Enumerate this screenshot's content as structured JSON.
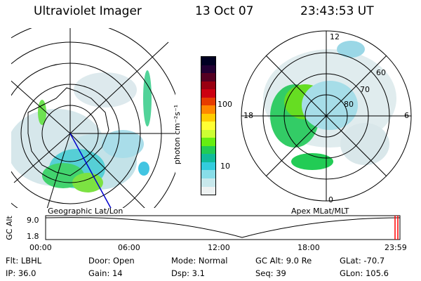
{
  "header": {
    "title": "Ultraviolet Imager",
    "date": "13 Oct 07",
    "time": "23:43:53 UT"
  },
  "colorbar": {
    "label": "photon cm⁻²s⁻¹",
    "ticks": [
      "100",
      "10"
    ],
    "colors": [
      "#000022",
      "#220033",
      "#550022",
      "#990011",
      "#cc0011",
      "#e63c00",
      "#ff8800",
      "#ffcc00",
      "#ffff33",
      "#ccff33",
      "#66ee11",
      "#22cc55",
      "#11bb99",
      "#33ccdd",
      "#88dde8",
      "#c8e8ec",
      "#eef2f2"
    ]
  },
  "panels": {
    "left_label": "Geographic Lat/Lon",
    "right_label": "Apex MLat/MLT",
    "polar": {
      "top": "12",
      "left": "18",
      "right": "6",
      "bottom": "0",
      "lat_labels": [
        "60",
        "70",
        "80"
      ]
    }
  },
  "altplot": {
    "y_title": "GC Alt",
    "y_ticks": [
      "9.0",
      "1.8"
    ],
    "x_ticks": [
      "00:00",
      "06:00",
      "12:00",
      "18:00",
      "23:59"
    ],
    "marker_color": "#ff0000"
  },
  "info": {
    "row1": [
      {
        "label": "Flt: LBHL"
      },
      {
        "label": "Door: Open"
      },
      {
        "label": "Mode: Normal"
      },
      {
        "label": "GC Alt: 9.0 Re"
      },
      {
        "label": "GLat: -70.7"
      }
    ],
    "row2": [
      {
        "label": "IP: 36.0"
      },
      {
        "label": "Gain: 14"
      },
      {
        "label": "Dsp:     3.1"
      },
      {
        "label": "Seq: 39"
      },
      {
        "label": "GLon: 105.6"
      }
    ]
  }
}
